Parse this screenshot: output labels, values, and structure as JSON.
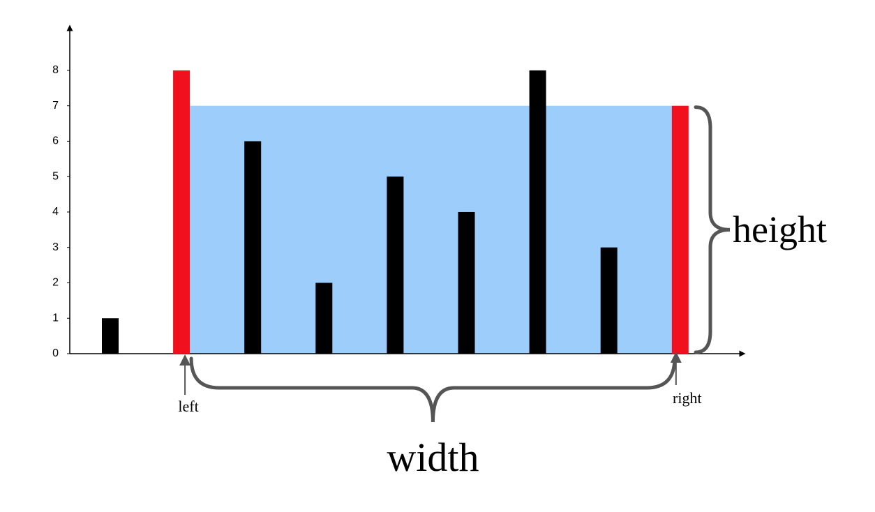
{
  "chart_data": {
    "type": "bar",
    "categories": [
      null,
      null,
      null,
      null,
      null,
      null,
      null,
      null,
      null
    ],
    "values": [
      1,
      8,
      6,
      2,
      5,
      4,
      8,
      3,
      7
    ],
    "colors": [
      "#000000",
      "#f0101e",
      "#000000",
      "#000000",
      "#000000",
      "#000000",
      "#000000",
      "#000000",
      "#f0101e"
    ],
    "area_color": "#9dcdfa",
    "ylim": [
      0,
      9.2
    ],
    "yticks": [
      0,
      1,
      2,
      3,
      4,
      5,
      6,
      7,
      8
    ],
    "annotations": {
      "left": "left",
      "right": "right",
      "height": "height",
      "width": "width"
    }
  }
}
